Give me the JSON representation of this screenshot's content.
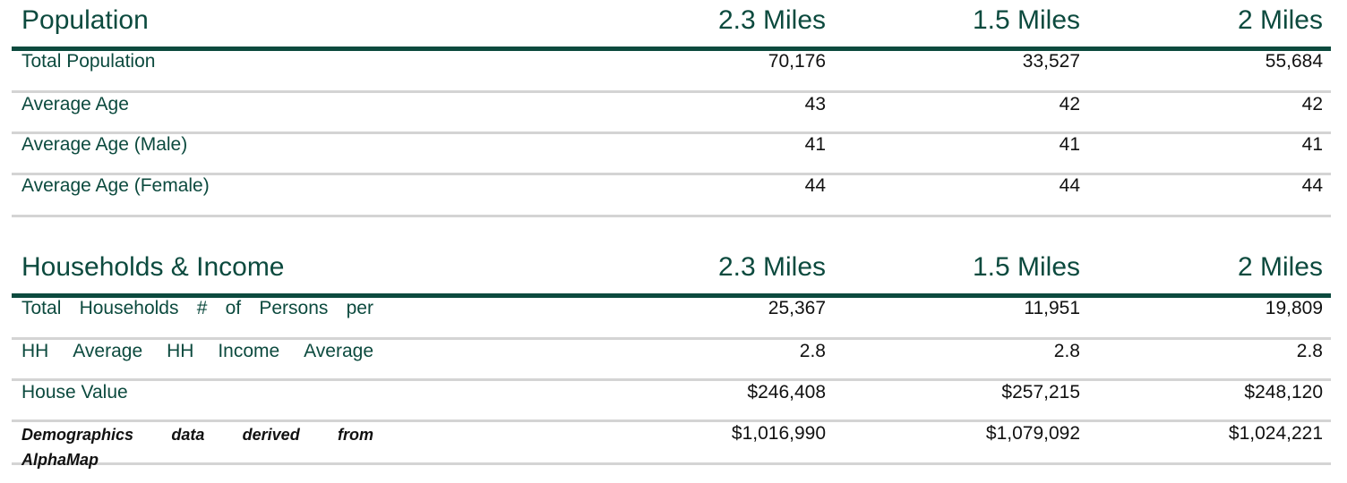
{
  "population": {
    "title": "Population",
    "columns": [
      "2.3 Miles",
      "1.5 Miles",
      "2 Miles"
    ],
    "rows": [
      {
        "label": "Total Population",
        "values": [
          "70,176",
          "33,527",
          "55,684"
        ]
      },
      {
        "label": "Average Age",
        "values": [
          "43",
          "42",
          "42"
        ]
      },
      {
        "label": "Average Age (Male)",
        "values": [
          "41",
          "41",
          "41"
        ]
      },
      {
        "label": "Average Age (Female)",
        "values": [
          "44",
          "44",
          "44"
        ]
      }
    ]
  },
  "households": {
    "title": "Households & Income",
    "columns": [
      "2.3 Miles",
      "1.5 Miles",
      "2 Miles"
    ],
    "rows": [
      {
        "label_words": [
          "Total",
          "Households",
          "#",
          "of",
          "Persons",
          "per"
        ],
        "values": [
          "25,367",
          "11,951",
          "19,809"
        ]
      },
      {
        "label_words": [
          "HH",
          "Average",
          "HH",
          "Income",
          "Average"
        ],
        "values": [
          "2.8",
          "2.8",
          "2.8"
        ]
      },
      {
        "label": "House Value",
        "values": [
          "$246,408",
          "$257,215",
          "$248,120"
        ]
      },
      {
        "values": [
          "$1,016,990",
          "$1,079,092",
          "$1,024,221"
        ]
      }
    ],
    "note": {
      "line1_words": [
        "Demographics",
        "data",
        "derived",
        "from"
      ],
      "line2": "AlphaMap"
    }
  }
}
